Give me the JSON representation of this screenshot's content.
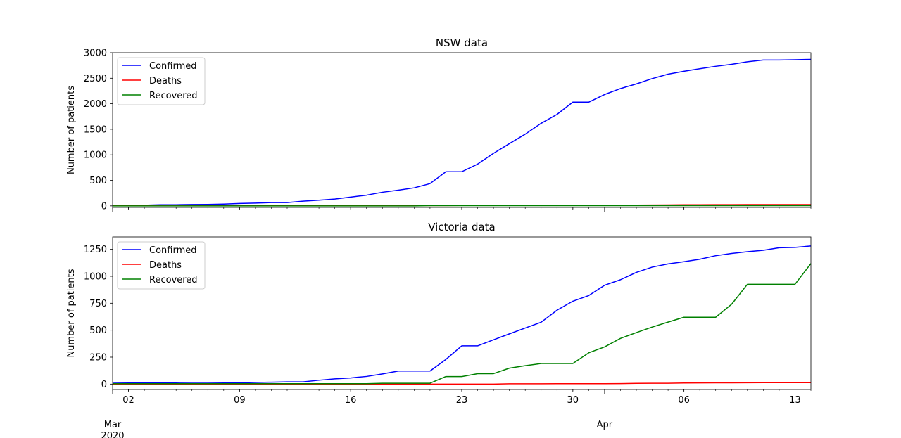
{
  "chart_data": [
    {
      "type": "line",
      "title": "NSW data",
      "xlabel": "",
      "ylabel": "Number of patients",
      "ylim": [
        -30,
        3000
      ],
      "yticks": [
        0,
        500,
        1000,
        1500,
        2000,
        2500,
        3000
      ],
      "legend": "top-left",
      "x": [
        "2020-03-01",
        "2020-03-02",
        "2020-03-03",
        "2020-03-04",
        "2020-03-05",
        "2020-03-06",
        "2020-03-07",
        "2020-03-08",
        "2020-03-09",
        "2020-03-10",
        "2020-03-11",
        "2020-03-12",
        "2020-03-13",
        "2020-03-14",
        "2020-03-15",
        "2020-03-16",
        "2020-03-17",
        "2020-03-18",
        "2020-03-19",
        "2020-03-20",
        "2020-03-21",
        "2020-03-22",
        "2020-03-23",
        "2020-03-24",
        "2020-03-25",
        "2020-03-26",
        "2020-03-27",
        "2020-03-28",
        "2020-03-29",
        "2020-03-30",
        "2020-03-31",
        "2020-04-01",
        "2020-04-02",
        "2020-04-03",
        "2020-04-04",
        "2020-04-05",
        "2020-04-06",
        "2020-04-07",
        "2020-04-08",
        "2020-04-09",
        "2020-04-10",
        "2020-04-11",
        "2020-04-12",
        "2020-04-13",
        "2020-04-14"
      ],
      "series": [
        {
          "name": "Confirmed",
          "color": "#0000ff",
          "values": [
            6,
            6,
            13,
            22,
            22,
            26,
            28,
            36,
            47,
            55,
            65,
            65,
            92,
            112,
            134,
            171,
            210,
            267,
            307,
            353,
            436,
            669,
            669,
            818,
            1029,
            1219,
            1405,
            1617,
            1791,
            2032,
            2032,
            2182,
            2298,
            2389,
            2493,
            2580,
            2637,
            2686,
            2734,
            2773,
            2822,
            2857,
            2857,
            2863,
            2870
          ]
        },
        {
          "name": "Deaths",
          "color": "#ff0000",
          "values": [
            1,
            1,
            1,
            1,
            1,
            1,
            1,
            1,
            1,
            2,
            2,
            2,
            2,
            2,
            2,
            4,
            4,
            5,
            5,
            6,
            6,
            6,
            7,
            7,
            7,
            7,
            8,
            8,
            10,
            11,
            11,
            12,
            13,
            14,
            16,
            18,
            21,
            21,
            23,
            23,
            25,
            25,
            25,
            25,
            25
          ]
        },
        {
          "name": "Recovered",
          "color": "#008000",
          "values": [
            0,
            0,
            0,
            0,
            0,
            0,
            0,
            0,
            0,
            0,
            0,
            0,
            0,
            0,
            0,
            0,
            0,
            0,
            0,
            0,
            4,
            4,
            4,
            4,
            4,
            4,
            4,
            4,
            4,
            4,
            4,
            4,
            4,
            4,
            4,
            4,
            4,
            4,
            4,
            4,
            4,
            4,
            4,
            4,
            4
          ]
        }
      ]
    },
    {
      "type": "line",
      "title": "Victoria data",
      "xlabel": "",
      "ylabel": "Number of patients",
      "ylim": [
        -50,
        1365
      ],
      "yticks": [
        0,
        250,
        500,
        750,
        1000,
        1250
      ],
      "legend": "top-left",
      "x": [
        "2020-03-01",
        "2020-03-02",
        "2020-03-03",
        "2020-03-04",
        "2020-03-05",
        "2020-03-06",
        "2020-03-07",
        "2020-03-08",
        "2020-03-09",
        "2020-03-10",
        "2020-03-11",
        "2020-03-12",
        "2020-03-13",
        "2020-03-14",
        "2020-03-15",
        "2020-03-16",
        "2020-03-17",
        "2020-03-18",
        "2020-03-19",
        "2020-03-20",
        "2020-03-21",
        "2020-03-22",
        "2020-03-23",
        "2020-03-24",
        "2020-03-25",
        "2020-03-26",
        "2020-03-27",
        "2020-03-28",
        "2020-03-29",
        "2020-03-30",
        "2020-03-31",
        "2020-04-01",
        "2020-04-02",
        "2020-04-03",
        "2020-04-04",
        "2020-04-05",
        "2020-04-06",
        "2020-04-07",
        "2020-04-08",
        "2020-04-09",
        "2020-04-10",
        "2020-04-11",
        "2020-04-12",
        "2020-04-13",
        "2020-04-14"
      ],
      "series": [
        {
          "name": "Confirmed",
          "color": "#0000ff",
          "values": [
            9,
            10,
            10,
            10,
            10,
            9,
            9,
            10,
            11,
            15,
            18,
            21,
            21,
            36,
            49,
            57,
            71,
            94,
            121,
            121,
            121,
            229,
            355,
            355,
            411,
            466,
            520,
            574,
            685,
            769,
            821,
            917,
            968,
            1036,
            1085,
            1115,
            1135,
            1158,
            1191,
            1212,
            1228,
            1241,
            1265,
            1268,
            1281
          ]
        },
        {
          "name": "Deaths",
          "color": "#ff0000",
          "values": [
            0,
            0,
            0,
            0,
            0,
            0,
            0,
            0,
            0,
            0,
            0,
            0,
            0,
            0,
            0,
            0,
            0,
            0,
            0,
            0,
            0,
            0,
            0,
            0,
            0,
            3,
            3,
            3,
            4,
            4,
            4,
            4,
            5,
            7,
            8,
            8,
            10,
            11,
            12,
            12,
            13,
            14,
            14,
            14,
            14
          ]
        },
        {
          "name": "Recovered",
          "color": "#008000",
          "values": [
            4,
            4,
            4,
            4,
            4,
            4,
            4,
            4,
            4,
            4,
            4,
            4,
            4,
            4,
            4,
            4,
            4,
            8,
            8,
            8,
            8,
            70,
            70,
            97,
            97,
            148,
            171,
            191,
            191,
            191,
            290,
            345,
            424,
            478,
            529,
            575,
            620,
            620,
            620,
            740,
            926,
            926,
            926,
            926,
            1118
          ]
        }
      ]
    }
  ],
  "x_axis": {
    "day_ticks": [
      {
        "date": "2020-03-02",
        "label": "02"
      },
      {
        "date": "2020-03-09",
        "label": "09"
      },
      {
        "date": "2020-03-16",
        "label": "16"
      },
      {
        "date": "2020-03-23",
        "label": "23"
      },
      {
        "date": "2020-03-30",
        "label": "30"
      },
      {
        "date": "2020-04-06",
        "label": "06"
      },
      {
        "date": "2020-04-13",
        "label": "13"
      }
    ],
    "month_ticks": [
      {
        "date": "2020-03-01",
        "label": "Mar",
        "sublabel": "2020"
      },
      {
        "date": "2020-04-01",
        "label": "Apr",
        "sublabel": ""
      }
    ],
    "xlim": [
      "2020-03-01",
      "2020-04-14"
    ]
  }
}
